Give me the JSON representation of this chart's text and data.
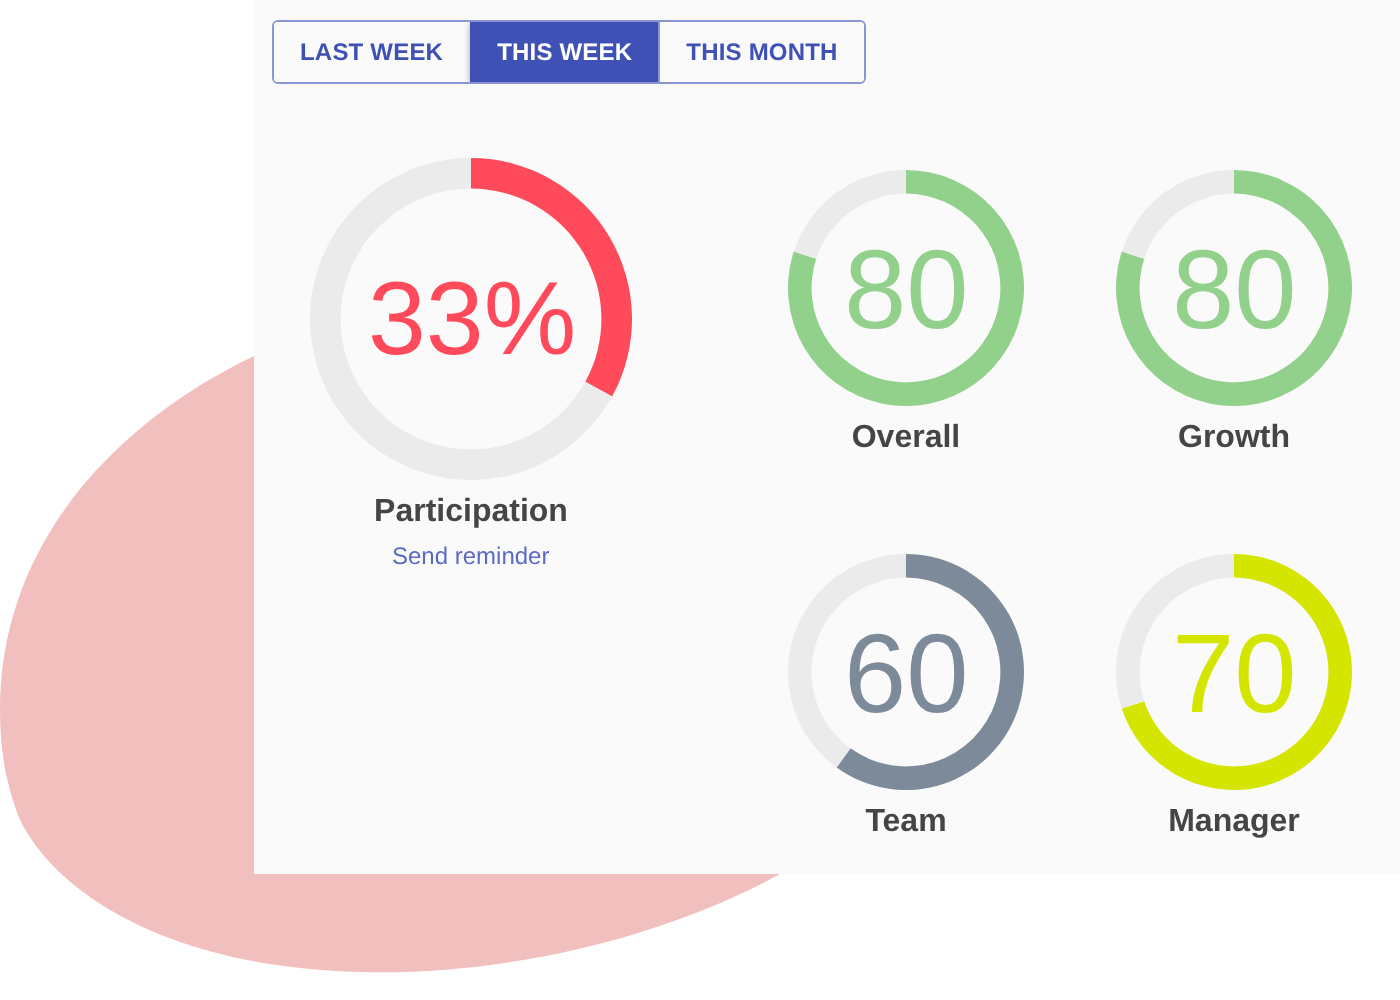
{
  "chart_data": [
    {
      "type": "other",
      "categories": [
        "LAST WEEK",
        "THIS WEEK",
        "THIS MONTH"
      ],
      "colors": [
        "#fafafa",
        "#3f51b5",
        "#fafafa"
      ]
    },
    {
      "type": "donut",
      "title": "Participation",
      "categories": [
        null,
        null
      ],
      "values": [
        33,
        67
      ],
      "colors": [
        "#ff4a5c",
        "#ebebeb"
      ],
      "annotations": [
        "33%",
        "Send reminder"
      ]
    },
    {
      "type": "donut",
      "title": "Overall",
      "categories": [
        null,
        null
      ],
      "values": [
        80,
        20
      ],
      "colors": [
        "#92d18b",
        "#ebebeb"
      ],
      "annotations": [
        "80"
      ]
    },
    {
      "type": "donut",
      "title": "Growth",
      "categories": [
        null,
        null
      ],
      "values": [
        80,
        20
      ],
      "colors": [
        "#92d18b",
        "#ebebeb"
      ],
      "annotations": [
        "80"
      ]
    },
    {
      "type": "donut",
      "title": "Team",
      "categories": [
        null,
        null
      ],
      "values": [
        60,
        40
      ],
      "colors": [
        "#7d8a99",
        "#ebebeb"
      ],
      "annotations": [
        "60"
      ]
    },
    {
      "type": "donut",
      "title": "Manager",
      "categories": [
        null,
        null
      ],
      "values": [
        70,
        30
      ],
      "colors": [
        "#d4e600",
        "#ebebeb"
      ],
      "annotations": [
        "70"
      ]
    }
  ]
}
